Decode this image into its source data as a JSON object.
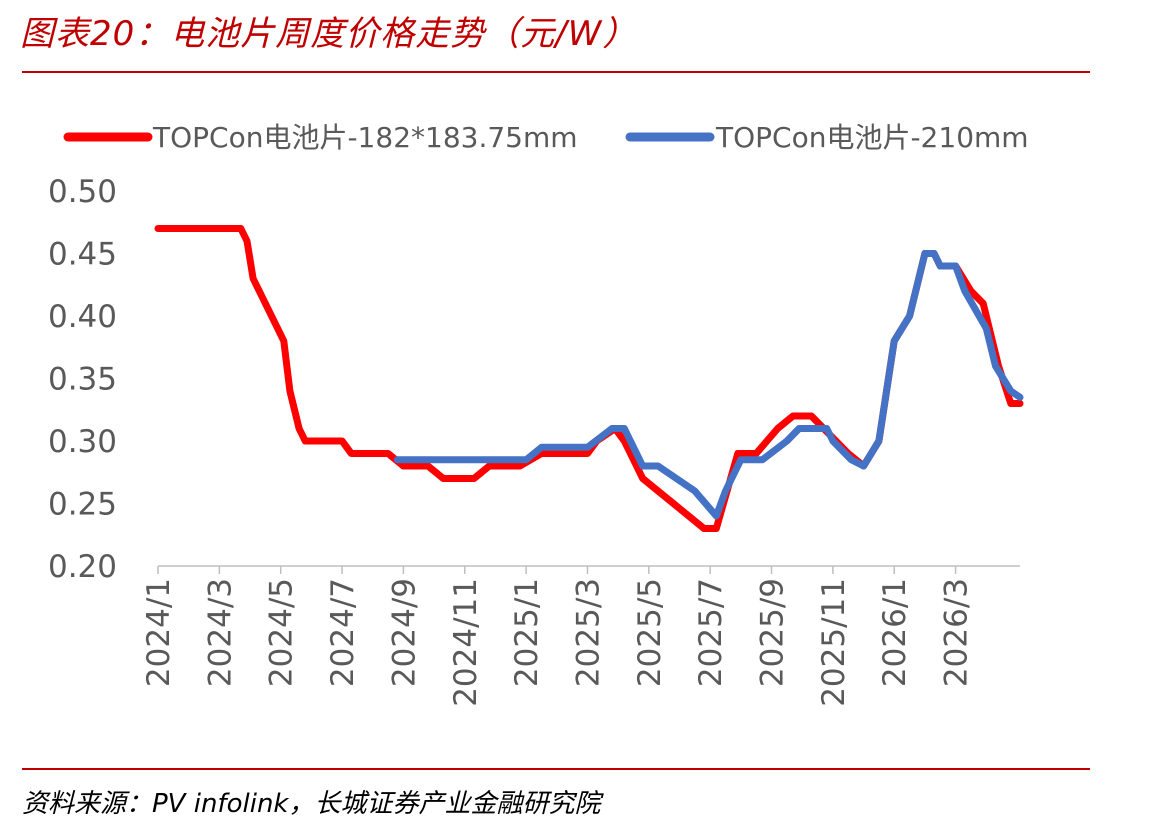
{
  "header": {
    "title": "图表20：电池片周度价格走势（元/W）"
  },
  "footer": {
    "source": "资料来源：PV infolink，长城证券产业金融研究院"
  },
  "colors": {
    "accent": "#c00000",
    "series1": "#ff0000",
    "series2": "#4472c4"
  },
  "chart_data": {
    "type": "line",
    "title": "图表20：电池片周度价格走势（元/W）",
    "xlabel": "",
    "ylabel": "",
    "ylim": [
      0.2,
      0.5
    ],
    "yticks": [
      "0.50",
      "0.45",
      "0.40",
      "0.35",
      "0.30",
      "0.25",
      "0.20"
    ],
    "xticks": [
      "2024/1",
      "2024/3",
      "2024/5",
      "2024/7",
      "2024/9",
      "2024/11",
      "2025/1",
      "2025/3",
      "2025/5",
      "2025/7",
      "2025/9",
      "2025/11",
      "2026/1",
      "2026/3"
    ],
    "grid": false,
    "legend": "top",
    "series": [
      {
        "name": "TOPCon电池片-182*183.75mm",
        "color": "#ff0000",
        "points": [
          [
            "2024/1",
            0.47
          ],
          [
            "2024/3",
            0.47
          ],
          [
            "2024/3.7",
            0.47
          ],
          [
            "2024/3.9",
            0.46
          ],
          [
            "2024/4.1",
            0.43
          ],
          [
            "2024/4.5",
            0.41
          ],
          [
            "2024/5.1",
            0.38
          ],
          [
            "2024/5.3",
            0.34
          ],
          [
            "2024/5.6",
            0.31
          ],
          [
            "2024/5.8",
            0.3
          ],
          [
            "2024/7",
            0.3
          ],
          [
            "2024/7.3",
            0.29
          ],
          [
            "2024/8.5",
            0.29
          ],
          [
            "2024/9",
            0.28
          ],
          [
            "2024/9.8",
            0.28
          ],
          [
            "2024/10.3",
            0.27
          ],
          [
            "2024/11.3",
            0.27
          ],
          [
            "2024/11.8",
            0.28
          ],
          [
            "2024/12.8",
            0.28
          ],
          [
            "2024/13.5",
            0.29
          ],
          [
            "2024/15",
            0.29
          ],
          [
            "2024/15.3",
            0.3
          ],
          [
            "2024/15.9",
            0.31
          ],
          [
            "2024/16.2",
            0.3
          ],
          [
            "2024/16.8",
            0.27
          ],
          [
            "2024/17.8",
            0.25
          ],
          [
            "2024/18.8",
            0.23
          ],
          [
            "2024/19.2",
            0.23
          ],
          [
            "2024/19.9",
            0.29
          ],
          [
            "2024/20.5",
            0.29
          ],
          [
            "2024/21.2",
            0.31
          ],
          [
            "2024/21.7",
            0.32
          ],
          [
            "2024/22.3",
            0.32
          ],
          [
            "2024/23.5",
            0.29
          ],
          [
            "2024/24",
            0.28
          ],
          [
            "2024/24.5",
            0.3
          ],
          [
            "2024/25",
            0.38
          ],
          [
            "2024/25.5",
            0.4
          ],
          [
            "2024/26",
            0.45
          ],
          [
            "2024/26.3",
            0.45
          ],
          [
            "2024/26.5",
            0.44
          ],
          [
            "2024/27",
            0.44
          ],
          [
            "2024/27.5",
            0.42
          ],
          [
            "2024/27.9",
            0.41
          ],
          [
            "2024/28.4",
            0.36
          ],
          [
            "2024/28.8",
            0.33
          ],
          [
            "2024/29.1",
            0.33
          ]
        ]
      },
      {
        "name": "TOPCon电池片-210mm",
        "color": "#4472c4",
        "points": [
          [
            "2024/8.8",
            0.285
          ],
          [
            "2024/13",
            0.285
          ],
          [
            "2024/13.5",
            0.295
          ],
          [
            "2024/15",
            0.295
          ],
          [
            "2024/15.8",
            0.31
          ],
          [
            "2024/16.2",
            0.31
          ],
          [
            "2024/16.8",
            0.28
          ],
          [
            "2024/17.3",
            0.28
          ],
          [
            "2024/18.5",
            0.26
          ],
          [
            "2024/19.2",
            0.24
          ],
          [
            "2024/19.5",
            0.26
          ],
          [
            "2024/20",
            0.285
          ],
          [
            "2024/20.7",
            0.285
          ],
          [
            "2024/21.5",
            0.3
          ],
          [
            "2024/21.9",
            0.31
          ],
          [
            "2024/22.8",
            0.31
          ],
          [
            "2024/23",
            0.3
          ],
          [
            "2024/23.6",
            0.285
          ],
          [
            "2024/24",
            0.28
          ],
          [
            "2024/24.5",
            0.3
          ],
          [
            "2024/25",
            0.38
          ],
          [
            "2024/25.5",
            0.4
          ],
          [
            "2024/26",
            0.45
          ],
          [
            "2024/26.3",
            0.45
          ],
          [
            "2024/26.5",
            0.44
          ],
          [
            "2024/27",
            0.44
          ],
          [
            "2024/27.3",
            0.42
          ],
          [
            "2024/28",
            0.39
          ],
          [
            "2024/28.3",
            0.36
          ],
          [
            "2024/28.8",
            0.34
          ],
          [
            "2024/29.1",
            0.335
          ]
        ]
      }
    ]
  }
}
